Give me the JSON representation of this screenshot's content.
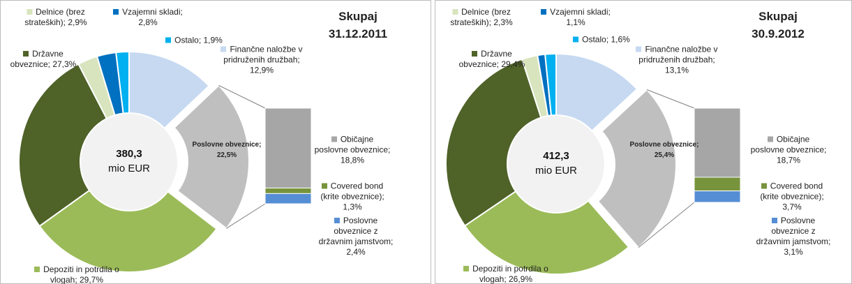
{
  "chart_data": [
    {
      "type": "donut",
      "title": "Skupaj",
      "subtitle": "31.12.2011",
      "center_text": [
        "380,3",
        "mio EUR"
      ],
      "values": [
        12.9,
        22.5,
        29.7,
        27.3,
        2.9,
        2.8,
        1.9
      ],
      "value_labels": [
        "Finančne naložbe v pridruženih družbah; 12,9%",
        "Poslovne obveznice; 22,5%",
        "Depoziti in potrdila o vlogah; 29,7%",
        "Državne obveznice; 27,3%",
        "Delnice (brez strateških); 2,9%",
        "Vzajemni skladi; 2,8%",
        "Ostalo; 1,9%"
      ],
      "colors": [
        "#c6d9f1",
        "#bfbfbf",
        "#9bbb59",
        "#4f6228",
        "#d7e4bd",
        "#0070c0",
        "#00b0f0"
      ],
      "breakdown": {
        "type": "bar",
        "values": [
          18.8,
          1.3,
          2.4
        ],
        "value_labels": [
          "Običajne poslovne obveznice; 18,8%",
          "Covered bond (krite obveznice); 1,3%",
          "Poslovne obveznice z državnim jamstvom; 2,4%"
        ],
        "colors": [
          "#a6a6a6",
          "#77933c",
          "#558ed5"
        ]
      }
    },
    {
      "type": "donut",
      "title": "Skupaj",
      "subtitle": "30.9.2012",
      "center_text": [
        "412,3",
        "mio EUR"
      ],
      "values": [
        13.1,
        25.4,
        26.9,
        29.4,
        2.3,
        1.1,
        1.6
      ],
      "value_labels": [
        "Finančne naložbe v pridruženih družbah; 13,1%",
        "Poslovne obveznice; 25,4%",
        "Depoziti in potrdila o vlogah; 26,9%",
        "Državne obveznice; 29,4%",
        "Delnice (brez strateških); 2,3%",
        "Vzajemni skladi; 1,1%",
        "Ostalo; 1,6%"
      ],
      "colors": [
        "#c6d9f1",
        "#bfbfbf",
        "#9bbb59",
        "#4f6228",
        "#d7e4bd",
        "#0070c0",
        "#00b0f0"
      ],
      "breakdown": {
        "type": "bar",
        "values": [
          18.7,
          3.7,
          3.1
        ],
        "value_labels": [
          "Običajne poslovne obveznice; 18,7%",
          "Covered bond (krite obveznice); 3,7%",
          "Poslovne obveznice z državnim jamstvom; 3,1%"
        ],
        "colors": [
          "#a6a6a6",
          "#77933c",
          "#558ed5"
        ]
      }
    }
  ]
}
